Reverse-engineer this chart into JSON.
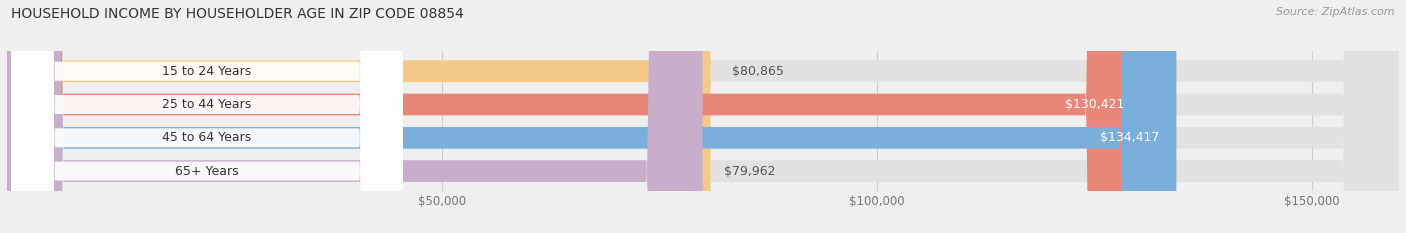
{
  "title": "HOUSEHOLD INCOME BY HOUSEHOLDER AGE IN ZIP CODE 08854",
  "source": "Source: ZipAtlas.com",
  "categories": [
    "15 to 24 Years",
    "25 to 44 Years",
    "45 to 64 Years",
    "65+ Years"
  ],
  "values": [
    80865,
    130421,
    134417,
    79962
  ],
  "bar_colors": [
    "#f5c98a",
    "#e8867a",
    "#7aaedb",
    "#c9aecb"
  ],
  "background_color": "#efefef",
  "bar_bg_color": "#e2e2e2",
  "xlim": [
    0,
    160000
  ],
  "xticks": [
    50000,
    100000,
    150000
  ],
  "xtick_labels": [
    "$50,000",
    "$100,000",
    "$150,000"
  ],
  "bar_height": 0.65,
  "label_inside_threshold": 100000,
  "figsize": [
    14.06,
    2.33
  ],
  "dpi": 100
}
